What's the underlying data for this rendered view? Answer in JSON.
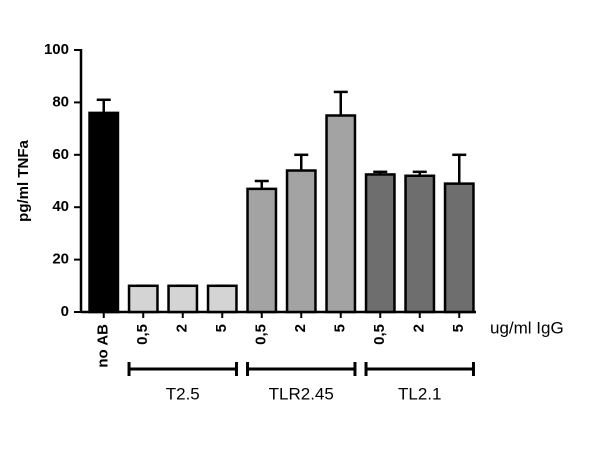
{
  "chart_data": {
    "type": "bar",
    "y_label": "pg/ml TNFa",
    "x_label": "ug/ml IgG",
    "categories": [
      "no AB",
      "0,5",
      "2",
      "5",
      "0,5",
      "2",
      "5",
      "0,5",
      "2",
      "5"
    ],
    "values": [
      76,
      10,
      10,
      10,
      47,
      54,
      75,
      52.5,
      52,
      49
    ],
    "errors": [
      5,
      0,
      0,
      0,
      3,
      6,
      9,
      1,
      1.5,
      11
    ],
    "colors": [
      "#000000",
      "#d4d4d4",
      "#d4d4d4",
      "#d4d4d4",
      "#a3a3a3",
      "#a3a3a3",
      "#a3a3a3",
      "#6e6e6e",
      "#6e6e6e",
      "#6e6e6e"
    ],
    "groups": [
      {
        "label": "T2.5",
        "from": 1,
        "to": 3
      },
      {
        "label": "TLR2.45",
        "from": 4,
        "to": 6
      },
      {
        "label": "TL2.1",
        "from": 7,
        "to": 9
      }
    ],
    "ylim": [
      0,
      100
    ],
    "yticks": [
      0,
      20,
      40,
      60,
      80,
      100
    ]
  }
}
